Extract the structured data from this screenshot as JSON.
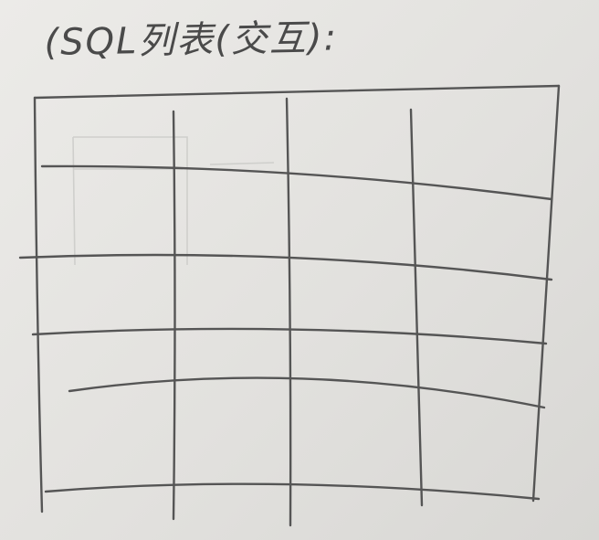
{
  "sketch": {
    "title": "(SQL列表(交互):",
    "table": {
      "rows": 5,
      "columns": 4
    }
  }
}
